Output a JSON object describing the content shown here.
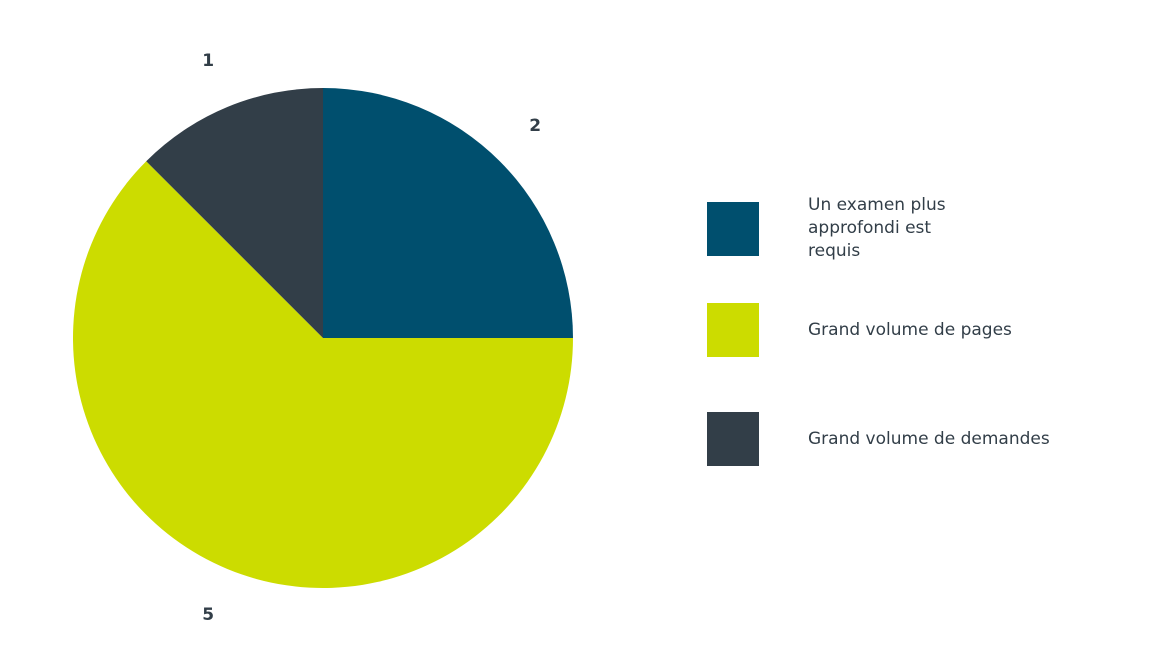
{
  "chart_data": {
    "type": "pie",
    "categories": [
      "Un examen plus approfondi est requis",
      "Grand volume de pages",
      "Grand volume de demandes"
    ],
    "values": [
      2,
      5,
      1
    ],
    "colors": [
      "#004f6e",
      "#ccdc00",
      "#323e48"
    ]
  }
}
